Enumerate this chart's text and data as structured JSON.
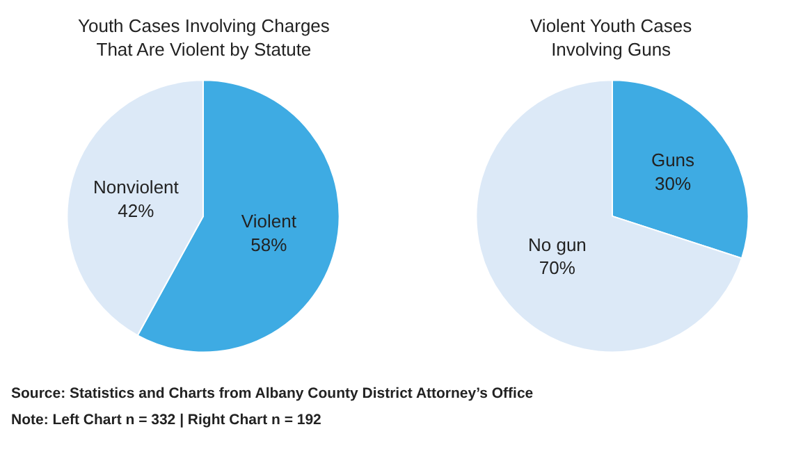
{
  "chart_data": [
    {
      "type": "pie",
      "title": "Youth Cases Involving Charges\nThat Are Violent by Statute",
      "categories": [
        "Violent",
        "Nonviolent"
      ],
      "values": [
        58,
        42
      ],
      "value_labels": [
        "58%",
        "42%"
      ],
      "colors": [
        "#3eabe3",
        "#dce9f7"
      ],
      "legend": false,
      "annotations": [
        "Source: Statistics and Charts from Albany County District Attorney’s Office",
        "Note: Left Chart n = 332 | Right Chart n = 192"
      ]
    },
    {
      "type": "pie",
      "title": "Violent Youth Cases\nInvolving Guns",
      "categories": [
        "Guns",
        "No gun"
      ],
      "values": [
        30,
        70
      ],
      "value_labels": [
        "30%",
        "70%"
      ],
      "colors": [
        "#3eabe3",
        "#dce9f7"
      ],
      "legend": false
    }
  ]
}
